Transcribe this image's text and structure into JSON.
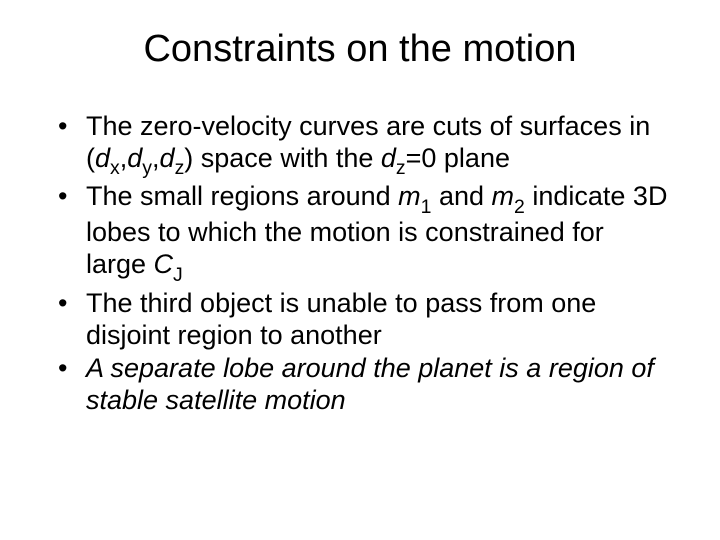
{
  "title": "Constraints on the motion",
  "bullets": [
    {
      "parts": [
        {
          "t": "The zero-velocity curves are cuts of surfaces in ("
        },
        {
          "t": "d",
          "it": true
        },
        {
          "t": "x",
          "sub": true
        },
        {
          "t": ","
        },
        {
          "t": "d",
          "it": true
        },
        {
          "t": "y",
          "sub": true
        },
        {
          "t": ","
        },
        {
          "t": "d",
          "it": true
        },
        {
          "t": "z",
          "sub": true
        },
        {
          "t": ") space with the "
        },
        {
          "t": "d",
          "it": true
        },
        {
          "t": "z",
          "sub": true
        },
        {
          "t": "=0 plane"
        }
      ]
    },
    {
      "parts": [
        {
          "t": "The small regions around "
        },
        {
          "t": "m",
          "it": true
        },
        {
          "t": "1",
          "sub": true
        },
        {
          "t": " and "
        },
        {
          "t": "m",
          "it": true
        },
        {
          "t": "2",
          "sub": true
        },
        {
          "t": " indicate 3D lobes to which the motion is constrained for large "
        },
        {
          "t": "C",
          "it": true
        },
        {
          "t": "J",
          "sub": true
        }
      ]
    },
    {
      "parts": [
        {
          "t": "The third object is unable to pass from one disjoint region to another"
        }
      ]
    },
    {
      "parts": [
        {
          "t": "A separate lobe around the planet is a region of stable satellite motion",
          "it": true
        }
      ]
    }
  ],
  "style": {
    "background_color": "#ffffff",
    "text_color": "#000000",
    "title_fontsize": 38,
    "body_fontsize": 27,
    "font_family": "Arial"
  }
}
